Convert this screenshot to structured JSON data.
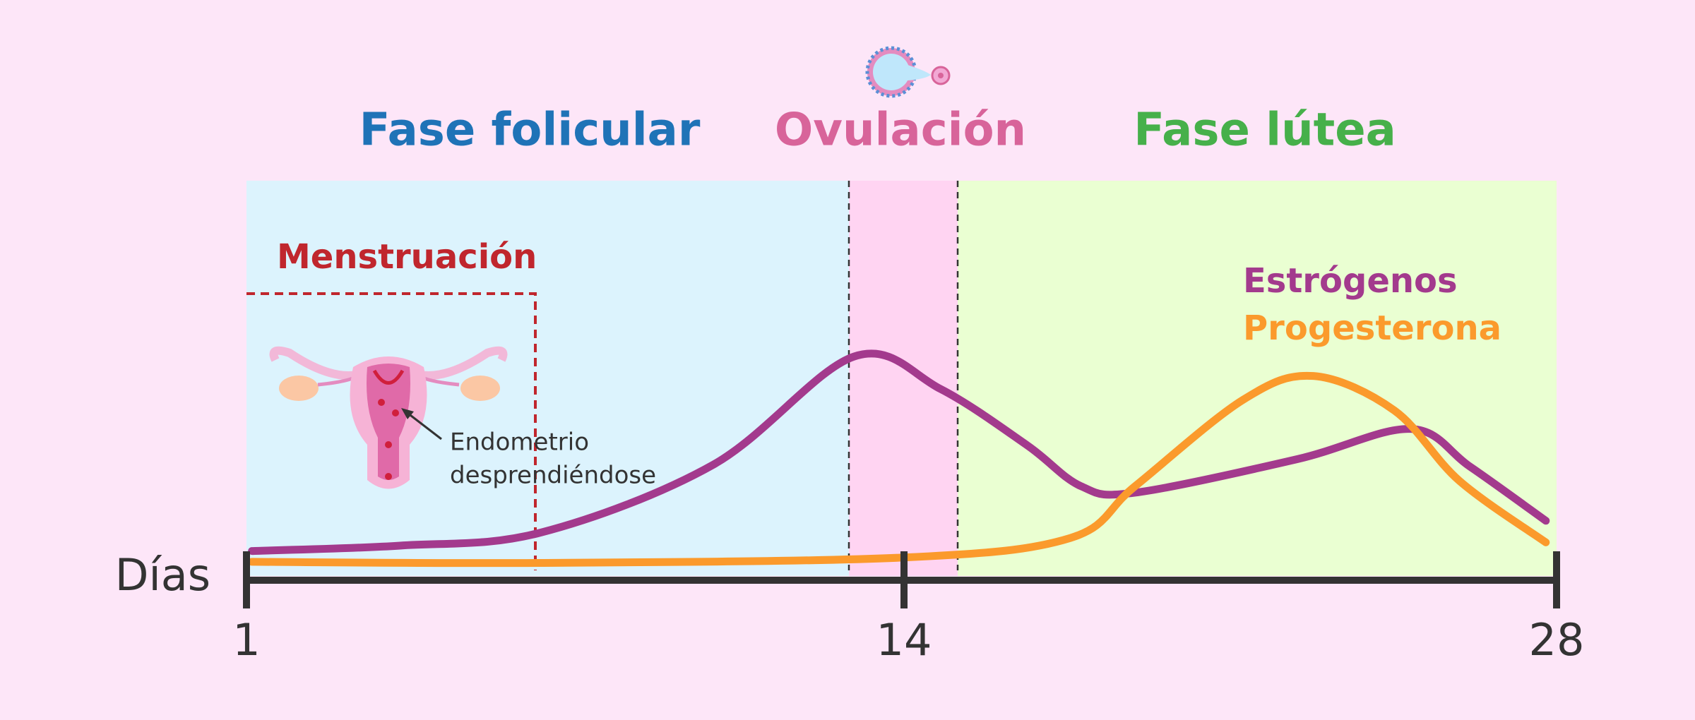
{
  "headings": {
    "follicular": "Fase folicular",
    "ovulation": "Ovulación",
    "luteal": "Fase lútea"
  },
  "menstruation": "Menstruación",
  "annotation": {
    "line1": "Endometrio",
    "line2": "desprendiéndose"
  },
  "legend": [
    "Estrógenos",
    "Progesterona"
  ],
  "axis": {
    "label": "Días",
    "ticks": [
      1,
      14,
      28
    ]
  }
}
